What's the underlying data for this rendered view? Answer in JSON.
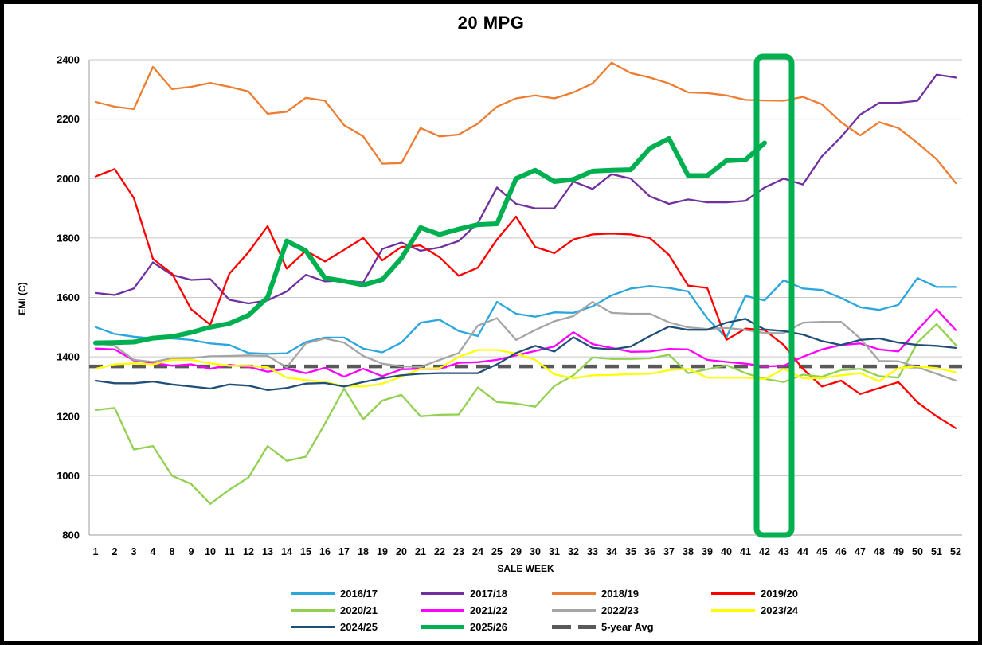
{
  "title": "20 MPG",
  "x_axis_label": "SALE WEEK",
  "y_axis_label": "EMI (C)",
  "colors": {
    "background": "#FFFFFF",
    "frame_border": "#000000",
    "gridline": "#C6C6C6",
    "axis_line": "#9E9E9E",
    "text": "#000000",
    "highlight": "#00B050"
  },
  "chart_data": {
    "type": "line",
    "title": "20 MPG",
    "xlabel": "SALE WEEK",
    "ylabel": "EMI (C)",
    "ylim": [
      800,
      2400
    ],
    "y_ticks": [
      800,
      1000,
      1200,
      1400,
      1600,
      1800,
      2000,
      2200,
      2400
    ],
    "grid": "horizontal",
    "legend_position": "bottom",
    "x_categories": [
      1,
      2,
      3,
      4,
      8,
      9,
      10,
      11,
      12,
      13,
      14,
      15,
      16,
      17,
      18,
      19,
      20,
      21,
      22,
      23,
      24,
      25,
      29,
      30,
      31,
      32,
      33,
      34,
      35,
      36,
      37,
      38,
      39,
      40,
      41,
      42,
      43,
      44,
      45,
      46,
      47,
      48,
      49,
      50,
      51,
      52
    ],
    "series": [
      {
        "name": "2016/17",
        "color": "#2AA6DE",
        "width": 2.3,
        "values": [
          1500,
          1477,
          1468,
          1462,
          1462,
          1457,
          1445,
          1440,
          1413,
          1410,
          1412,
          1450,
          1465,
          1465,
          1428,
          1415,
          1448,
          1515,
          1525,
          1487,
          1470,
          1585,
          1545,
          1535,
          1550,
          1548,
          1570,
          1607,
          1630,
          1638,
          1632,
          1620,
          1530,
          1465,
          1605,
          1590,
          1658,
          1630,
          1625,
          1598,
          1567,
          1558,
          1575,
          1665,
          1635,
          1635
        ]
      },
      {
        "name": "2017/18",
        "color": "#7030A0",
        "width": 2.3,
        "values": [
          1615,
          1608,
          1630,
          1718,
          1676,
          1659,
          1662,
          1592,
          1580,
          1590,
          1620,
          1676,
          1654,
          1657,
          1650,
          1763,
          1785,
          1757,
          1768,
          1790,
          1850,
          1970,
          1915,
          1900,
          1900,
          1990,
          1965,
          2015,
          2000,
          1940,
          1915,
          1930,
          1920,
          1920,
          1925,
          1970,
          2000,
          1980,
          2075,
          2140,
          2215,
          2255,
          2255,
          2262,
          2350,
          2340
        ]
      },
      {
        "name": "2018/19",
        "color": "#ED7D31",
        "width": 2.3,
        "values": [
          2258,
          2242,
          2234,
          2376,
          2301,
          2309,
          2322,
          2309,
          2293,
          2218,
          2225,
          2272,
          2262,
          2180,
          2142,
          2050,
          2052,
          2170,
          2142,
          2148,
          2185,
          2242,
          2270,
          2280,
          2270,
          2290,
          2320,
          2390,
          2355,
          2340,
          2320,
          2290,
          2288,
          2280,
          2265,
          2263,
          2262,
          2275,
          2250,
          2190,
          2145,
          2190,
          2170,
          2120,
          2065,
          1985
        ]
      },
      {
        "name": "2019/20",
        "color": "#FF0000",
        "width": 2.3,
        "values": [
          2007,
          2032,
          1935,
          1730,
          1680,
          1560,
          1508,
          1680,
          1752,
          1840,
          1697,
          1757,
          1721,
          1760,
          1800,
          1725,
          1770,
          1775,
          1735,
          1673,
          1700,
          1795,
          1872,
          1770,
          1749,
          1795,
          1812,
          1815,
          1812,
          1800,
          1743,
          1640,
          1632,
          1457,
          1495,
          1490,
          1440,
          1360,
          1300,
          1320,
          1275,
          1295,
          1315,
          1247,
          1200,
          1160
        ]
      },
      {
        "name": "2020/21",
        "color": "#92D050",
        "width": 2.3,
        "values": [
          1221,
          1228,
          1088,
          1100,
          1000,
          972,
          905,
          953,
          994,
          1100,
          1050,
          1064,
          1175,
          1293,
          1190,
          1253,
          1272,
          1200,
          1205,
          1206,
          1297,
          1248,
          1243,
          1232,
          1302,
          1338,
          1398,
          1393,
          1393,
          1395,
          1407,
          1345,
          1358,
          1372,
          1345,
          1326,
          1315,
          1340,
          1333,
          1355,
          1360,
          1335,
          1330,
          1448,
          1510,
          1440
        ]
      },
      {
        "name": "2021/22",
        "color": "#FF00FF",
        "width": 2.3,
        "values": [
          1428,
          1425,
          1388,
          1380,
          1370,
          1375,
          1360,
          1373,
          1366,
          1350,
          1360,
          1345,
          1363,
          1333,
          1360,
          1335,
          1358,
          1360,
          1360,
          1380,
          1382,
          1390,
          1405,
          1420,
          1435,
          1483,
          1443,
          1430,
          1417,
          1418,
          1427,
          1425,
          1390,
          1383,
          1377,
          1368,
          1370,
          1400,
          1425,
          1440,
          1445,
          1425,
          1418,
          1490,
          1560,
          1490
        ]
      },
      {
        "name": "2022/23",
        "color": "#A5A5A5",
        "width": 2.3,
        "values": [
          1447,
          1437,
          1390,
          1383,
          1395,
          1396,
          1402,
          1403,
          1405,
          1403,
          1365,
          1445,
          1462,
          1448,
          1403,
          1377,
          1368,
          1366,
          1390,
          1413,
          1505,
          1530,
          1457,
          1490,
          1520,
          1537,
          1585,
          1548,
          1545,
          1545,
          1516,
          1499,
          1494,
          1497,
          1491,
          1480,
          1480,
          1515,
          1518,
          1518,
          1462,
          1386,
          1385,
          1365,
          1343,
          1320
        ]
      },
      {
        "name": "2023/24",
        "color": "#FFFF00",
        "width": 2.3,
        "values": [
          1360,
          1375,
          1378,
          1375,
          1390,
          1390,
          1378,
          1370,
          1370,
          1365,
          1330,
          1322,
          1315,
          1302,
          1300,
          1310,
          1333,
          1360,
          1362,
          1400,
          1423,
          1423,
          1411,
          1390,
          1341,
          1328,
          1338,
          1339,
          1342,
          1343,
          1355,
          1360,
          1330,
          1330,
          1330,
          1325,
          1360,
          1328,
          1328,
          1338,
          1345,
          1318,
          1362,
          1368,
          1362,
          1348
        ]
      },
      {
        "name": "2024/25",
        "color": "#1F4E79",
        "width": 2.3,
        "values": [
          1320,
          1311,
          1311,
          1317,
          1307,
          1300,
          1293,
          1307,
          1303,
          1288,
          1295,
          1310,
          1312,
          1300,
          1315,
          1328,
          1338,
          1343,
          1345,
          1345,
          1345,
          1375,
          1413,
          1437,
          1418,
          1466,
          1430,
          1425,
          1435,
          1470,
          1502,
          1491,
          1491,
          1515,
          1528,
          1492,
          1487,
          1475,
          1453,
          1440,
          1457,
          1462,
          1448,
          1440,
          1437,
          1430
        ]
      },
      {
        "name": "2025/26",
        "color": "#00B050",
        "width": 6,
        "values": [
          1447,
          1448,
          1450,
          1463,
          1468,
          1482,
          1500,
          1512,
          1540,
          1600,
          1790,
          1757,
          1665,
          1655,
          1642,
          1660,
          1732,
          1835,
          1812,
          1830,
          1845,
          1848,
          2000,
          2028,
          1990,
          1997,
          2025,
          2028,
          2030,
          2102,
          2135,
          2010,
          2010,
          2060,
          2063,
          2120,
          null,
          null,
          null,
          null,
          null,
          null,
          null,
          null,
          null,
          null
        ]
      }
    ],
    "average_line": {
      "name": "5-year Avg",
      "color": "#595959",
      "value": 1368,
      "dashed": true,
      "width": 4.5
    },
    "highlight_box": {
      "weeks": [
        42,
        43
      ],
      "color": "#00B050"
    }
  },
  "legend_rows": [
    [
      "2016/17",
      "2017/18",
      "2018/19",
      "2019/20"
    ],
    [
      "2020/21",
      "2021/22",
      "2022/23",
      "2023/24"
    ],
    [
      "2024/25",
      "2025/26",
      "5-year Avg"
    ]
  ]
}
